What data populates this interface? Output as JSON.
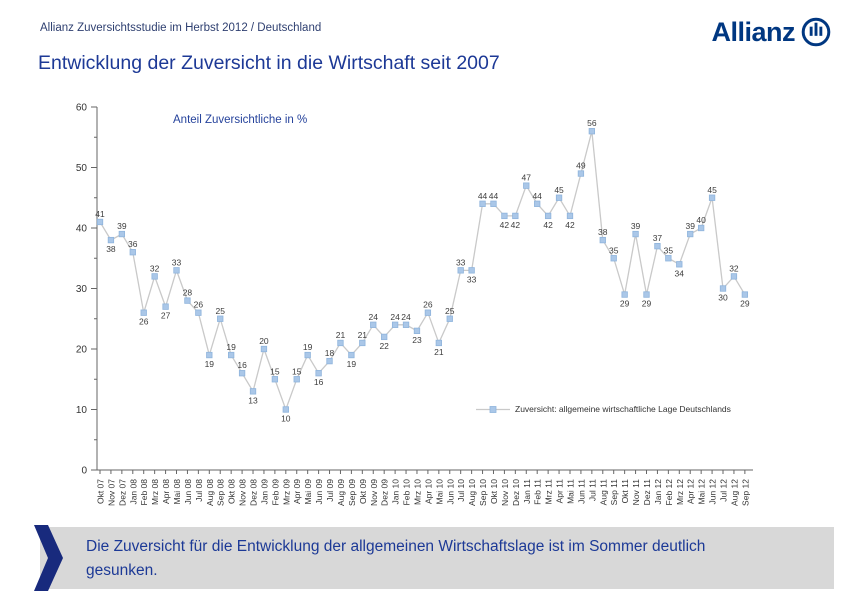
{
  "header": {
    "subtitle": "Allianz Zuversichtsstudie im Herbst 2012 / Deutschland",
    "brand": "Allianz",
    "title": "Entwicklung der Zuversicht in die Wirtschaft seit 2007"
  },
  "chart_data": {
    "type": "line",
    "annotation": "Anteil Zuversichtliche in %",
    "legend_label": "Zuversicht: allgemeine wirtschaftliche Lage Deutschlands",
    "legend_position": "inside-right",
    "marker": "square",
    "grid": false,
    "ylim": [
      0,
      60
    ],
    "yticks": [
      0,
      10,
      20,
      30,
      40,
      50,
      60
    ],
    "x": [
      "Okt 07",
      "Nov 07",
      "Dez 07",
      "Jan 08",
      "Feb 08",
      "Mrz 08",
      "Apr 08",
      "Mai 08",
      "Jun 08",
      "Jul 08",
      "Aug 08",
      "Sep 08",
      "Okt 08",
      "Nov 08",
      "Dez 08",
      "Jan 09",
      "Feb 09",
      "Mrz 09",
      "Apr 09",
      "Mai 09",
      "Jun 09",
      "Jul 09",
      "Aug 09",
      "Sep 09",
      "Okt 09",
      "Nov 09",
      "Dez 09",
      "Jan 10",
      "Feb 10",
      "Mrz 10",
      "Apr 10",
      "Mai 10",
      "Jun 10",
      "Jul 10",
      "Aug 10",
      "Sep 10",
      "Okt 10",
      "Nov 10",
      "Dez 10",
      "Jan 11",
      "Feb 11",
      "Mrz 11",
      "Apr 11",
      "Mai 11",
      "Jun 11",
      "Jul 11",
      "Aug 11",
      "Sep 11",
      "Okt 11",
      "Nov 11",
      "Dez 11",
      "Jan 12",
      "Feb 12",
      "Mrz 12",
      "Apr 12",
      "Mai 12",
      "Jun 12",
      "Jul 12",
      "Aug 12",
      "Sep 12"
    ],
    "series": [
      {
        "name": "Zuversicht: allgemeine wirtschaftliche Lage Deutschlands",
        "values": [
          41,
          38,
          39,
          36,
          26,
          32,
          27,
          33,
          28,
          26,
          19,
          25,
          19,
          16,
          13,
          20,
          15,
          10,
          15,
          19,
          16,
          18,
          21,
          19,
          21,
          24,
          22,
          24,
          24,
          23,
          26,
          21,
          25,
          33,
          33,
          44,
          44,
          42,
          42,
          47,
          44,
          42,
          45,
          42,
          49,
          56,
          38,
          35,
          29,
          39,
          29,
          37,
          35,
          34,
          39,
          40,
          45,
          30,
          32,
          29
        ]
      }
    ]
  },
  "footer": {
    "message": "Die Zuversicht für die Entwicklung der allgemeinen Wirtschaftslage ist im Sommer deutlich gesunken."
  },
  "colors": {
    "brand_blue": "#003781",
    "title_blue": "#1d3996",
    "subtitle_color": "#2e3f70",
    "annotation_blue": "#26439c",
    "marker_fill": "#aac7e8",
    "marker_stroke": "#8fb4dc",
    "line_gray": "#c9c9c9",
    "axis": "#666666",
    "label": "#3c3c3c",
    "banner_bg": "#d8d8d8",
    "banner_arrow": "#182a7d",
    "banner_text": "#1c3996"
  }
}
